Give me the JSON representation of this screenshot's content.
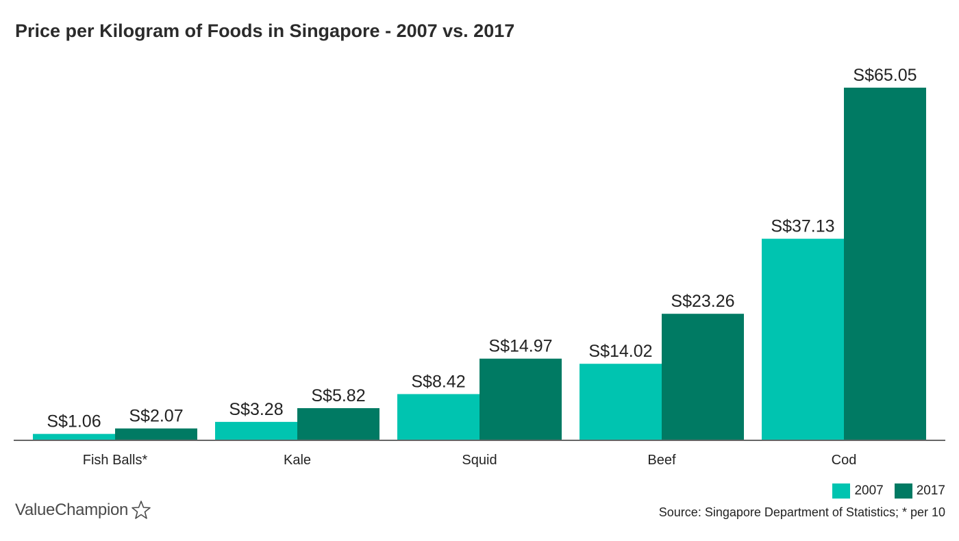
{
  "chart_data": {
    "type": "bar",
    "title": "Price per Kilogram of Foods in Singapore - 2007 vs. 2017",
    "categories": [
      "Fish Balls*",
      "Kale",
      "Squid",
      "Beef",
      "Cod"
    ],
    "series": [
      {
        "name": "2007",
        "color": "#00c4b0",
        "values": [
          1.06,
          3.28,
          8.42,
          14.02,
          37.13
        ],
        "labels": [
          "S$1.06",
          "S$3.28",
          "S$8.42",
          "S$14.02",
          "S$37.13"
        ]
      },
      {
        "name": "2017",
        "color": "#007a63",
        "values": [
          2.07,
          5.82,
          14.97,
          23.26,
          65.05
        ],
        "labels": [
          "S$2.07",
          "S$5.82",
          "S$14.97",
          "S$23.26",
          "S$65.05"
        ]
      }
    ],
    "xlabel": "",
    "ylabel": "",
    "ylim": [
      0,
      65.05
    ],
    "grid": false,
    "legend": "bottom-right"
  },
  "footer": {
    "brand": "ValueChampion",
    "source": "Source: Singapore Department of Statistics; * per 10"
  }
}
